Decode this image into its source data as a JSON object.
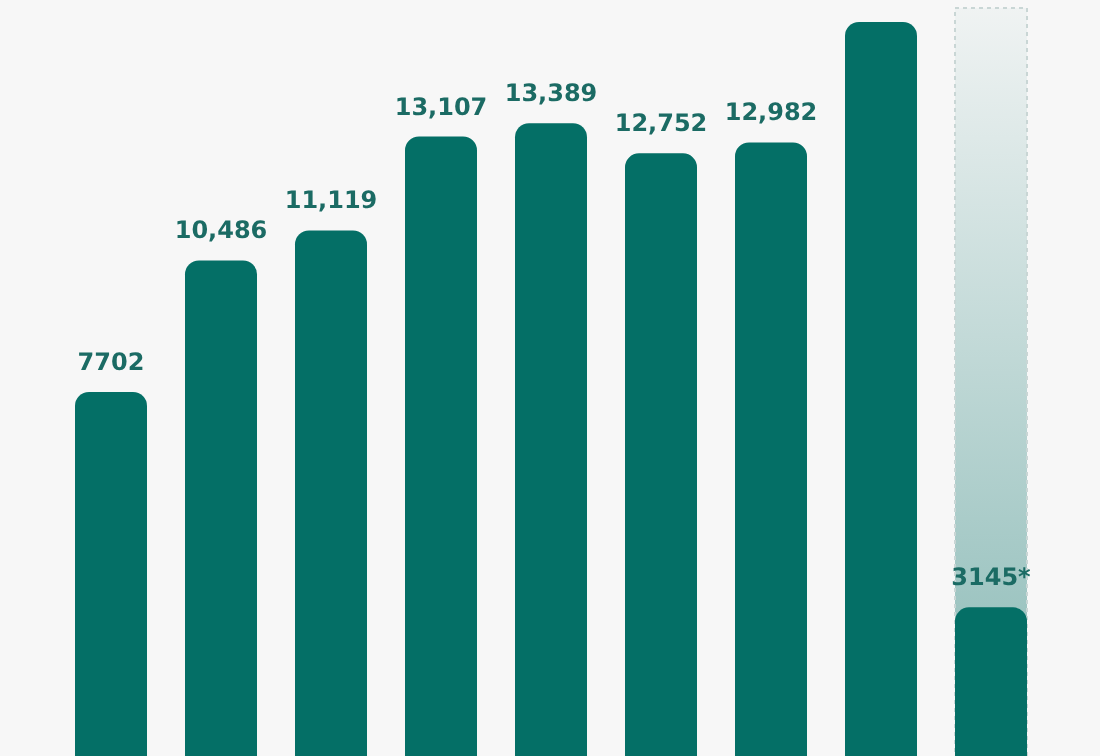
{
  "chart_data": {
    "type": "bar",
    "categories": [
      null,
      null,
      null,
      null,
      null,
      null,
      null,
      null,
      null
    ],
    "values": [
      7702,
      10486,
      11119,
      13107,
      13389,
      12752,
      12982,
      15530,
      3145
    ],
    "color": "#046f66",
    "value_labels": [
      "7702",
      "10,486",
      "11,119",
      "13,107",
      "13,389",
      "12,752",
      "12,982",
      null,
      "3145*"
    ],
    "tick_labels": false
  }
}
